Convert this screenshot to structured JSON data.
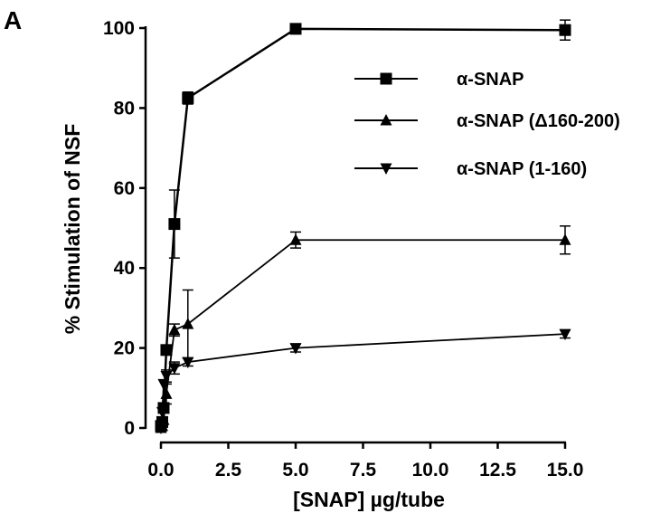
{
  "chart_data": {
    "type": "line",
    "panel_label": "A",
    "xlabel": "[SNAP] µg/tube",
    "ylabel": "% Stimulation of NSF",
    "xlim": [
      0,
      15
    ],
    "ylim": [
      0,
      100
    ],
    "xticks": [
      "0.0",
      "2.5",
      "5.0",
      "7.5",
      "10.0",
      "12.5",
      "15.0"
    ],
    "yticks": [
      "0",
      "20",
      "40",
      "60",
      "80",
      "100"
    ],
    "xtick_values": [
      0,
      2.5,
      5,
      7.5,
      10,
      12.5,
      15
    ],
    "ytick_values": [
      0,
      20,
      40,
      60,
      80,
      100
    ],
    "legend_position": "top-right",
    "series": [
      {
        "name": "α-SNAP",
        "marker": "square",
        "x": [
          0.0,
          0.05,
          0.1,
          0.2,
          0.5,
          1.0,
          5.0,
          15.0
        ],
        "y": [
          0.5,
          1.5,
          5.0,
          19.5,
          51.0,
          82.5,
          99.8,
          99.5
        ],
        "err": [
          0,
          0,
          0,
          0,
          8.5,
          1.5,
          0,
          2.5
        ]
      },
      {
        "name": "α-SNAP (Δ160-200)",
        "marker": "triangle-up",
        "x": [
          0.0,
          0.05,
          0.1,
          0.2,
          0.5,
          1.0,
          5.0,
          15.0
        ],
        "y": [
          0.0,
          0.5,
          2.0,
          8.5,
          24.5,
          26.0,
          47.0,
          47.0
        ],
        "err": [
          0,
          0,
          0,
          2.5,
          1.5,
          8.5,
          2.0,
          3.5
        ]
      },
      {
        "name": "α-SNAP (1-160)",
        "marker": "triangle-down",
        "x": [
          0.0,
          0.05,
          0.1,
          0.2,
          0.5,
          1.0,
          5.0,
          15.0
        ],
        "y": [
          0.0,
          4.0,
          11.0,
          13.0,
          15.0,
          16.5,
          20.0,
          23.5
        ],
        "err": [
          0,
          0,
          0,
          1.5,
          1.5,
          1.0,
          1.0,
          1.0
        ]
      }
    ]
  }
}
